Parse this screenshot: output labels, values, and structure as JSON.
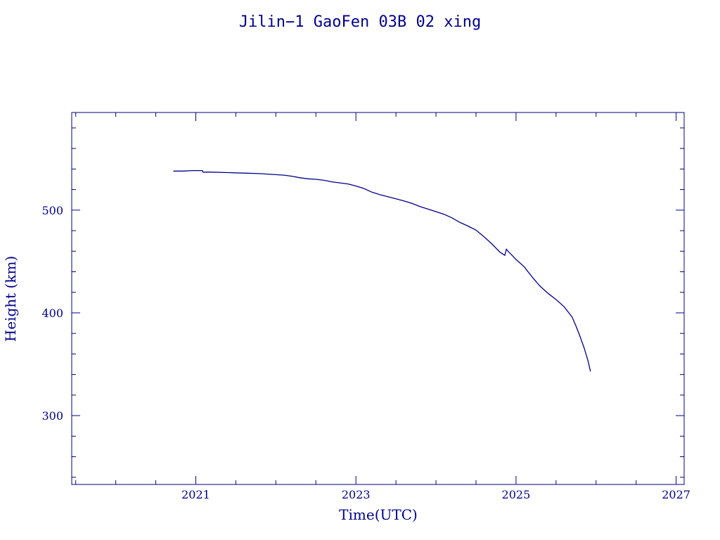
{
  "colors": {
    "ink": "#00008b",
    "background": "#ffffff"
  },
  "chart_data": {
    "type": "line",
    "title": "Jilin−1 GaoFen 03B 02 xing",
    "xlabel": "Time(UTC)",
    "ylabel": "Height (km)",
    "xlim": [
      2019.45,
      2027.1
    ],
    "ylim": [
      233,
      595
    ],
    "x_ticks": [
      2021,
      2023,
      2025,
      2027
    ],
    "y_ticks": [
      300,
      400,
      500
    ],
    "x_minor_step": 0.5,
    "y_minor_step": 20,
    "grid": false,
    "legend": "none",
    "series": [
      {
        "x": [
          2020.72,
          2020.85,
          2020.95,
          2021.05,
          2021.08,
          2021.09,
          2021.2,
          2021.4,
          2021.6,
          2021.8,
          2022.0,
          2022.1,
          2022.2,
          2022.3,
          2022.4,
          2022.5,
          2022.6,
          2022.7,
          2022.8,
          2022.9,
          2023.0,
          2023.1,
          2023.2,
          2023.3,
          2023.4,
          2023.5,
          2023.6,
          2023.7,
          2023.8,
          2023.9,
          2024.0,
          2024.1,
          2024.2,
          2024.3,
          2024.4,
          2024.5,
          2024.6,
          2024.7,
          2024.8,
          2024.86,
          2024.88,
          2024.9,
          2024.95,
          2025.0,
          2025.1,
          2025.2,
          2025.3,
          2025.4,
          2025.5,
          2025.6,
          2025.65,
          2025.7,
          2025.75,
          2025.8,
          2025.85,
          2025.9,
          2025.93
        ],
        "y": [
          538,
          538,
          538.5,
          538.5,
          538.5,
          537,
          537,
          536.5,
          536,
          535.5,
          534.5,
          534,
          533,
          531.5,
          530.5,
          530,
          529,
          527.5,
          526.5,
          525.5,
          523.5,
          521,
          517.5,
          515,
          513,
          511,
          509,
          506.5,
          503.5,
          501,
          498.5,
          496,
          492.5,
          488,
          484.5,
          480.5,
          474,
          467,
          459,
          456,
          462,
          460,
          456,
          452,
          445,
          435,
          426,
          419,
          413,
          406,
          401,
          396,
          387,
          377,
          366,
          353,
          343
        ]
      }
    ]
  }
}
